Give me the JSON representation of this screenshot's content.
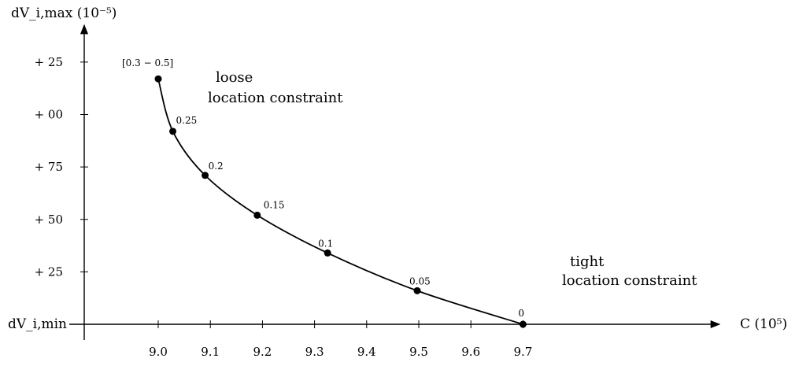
{
  "chart_data": {
    "type": "line",
    "title": "",
    "xlabel": "C (10⁵)",
    "ylabel": "dV_i,max (10⁻⁵)",
    "xlim": [
      8.89,
      9.75
    ],
    "ylim": [
      0,
      1.17
    ],
    "x_ticks": [
      {
        "value": 9.0,
        "label": "9.0"
      },
      {
        "value": 9.1,
        "label": "9.1"
      },
      {
        "value": 9.2,
        "label": "9.2"
      },
      {
        "value": 9.3,
        "label": "9.3"
      },
      {
        "value": 9.4,
        "label": "9.4"
      },
      {
        "value": 9.5,
        "label": "9.5"
      },
      {
        "value": 9.6,
        "label": "9.6"
      },
      {
        "value": 9.7,
        "label": "9.7"
      }
    ],
    "y_ticks": [
      {
        "value": 0.25,
        "label": "+ 25"
      },
      {
        "value": 0.5,
        "label": "+ 50"
      },
      {
        "value": 0.75,
        "label": "+ 75"
      },
      {
        "value": 1.0,
        "label": "+ 00"
      },
      {
        "value": 1.25,
        "label": "+ 25"
      }
    ],
    "y_min_label": "dV_i,min",
    "series": [
      {
        "points": [
          {
            "x": 9.0,
            "y": 1.17,
            "label": "[0.3 − 0.5]"
          },
          {
            "x": 9.028,
            "y": 0.92,
            "label": "0.25"
          },
          {
            "x": 9.09,
            "y": 0.71,
            "label": "0.2"
          },
          {
            "x": 9.19,
            "y": 0.52,
            "label": "0.15"
          },
          {
            "x": 9.325,
            "y": 0.34,
            "label": "0.1"
          },
          {
            "x": 9.497,
            "y": 0.16,
            "label": "0.05"
          },
          {
            "x": 9.7,
            "y": 0.0,
            "label": "0"
          }
        ]
      }
    ],
    "annotations": [
      {
        "text": "loose",
        "x": 9.07,
        "y": 1.15
      },
      {
        "text": "location constraint",
        "x": 9.07,
        "y": 1.07
      },
      {
        "text": "tight",
        "x": 9.56,
        "y": 0.27
      },
      {
        "text": "location constraint",
        "x": 9.56,
        "y": 0.19
      }
    ],
    "grid": false,
    "legend": "none",
    "colors": {
      "line": "#000000",
      "point": "#000000",
      "axis": "#000000"
    }
  }
}
